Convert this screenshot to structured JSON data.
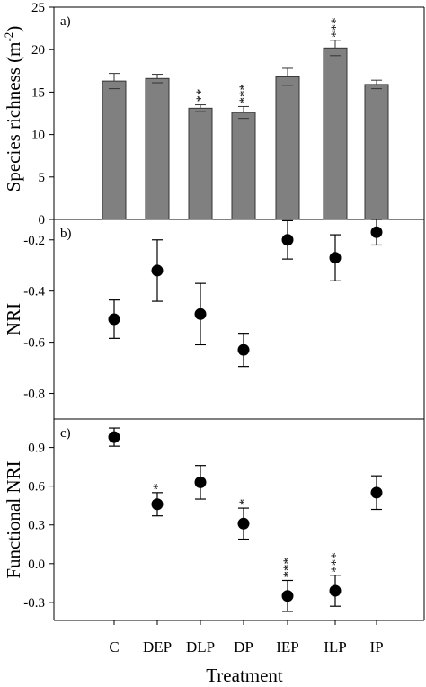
{
  "x_axis": {
    "label": "Treatment",
    "categories": [
      "C",
      "DEP",
      "DLP",
      "DP",
      "IEP",
      "ILP",
      "IP"
    ]
  },
  "chart_data": [
    {
      "type": "bar",
      "panel_label": "a)",
      "ylabel": "Species richness (m",
      "ylabel_sup": "-2",
      "ylabel_close": ")",
      "categories": [
        "C",
        "DEP",
        "DLP",
        "DP",
        "IEP",
        "ILP",
        "IP"
      ],
      "values": [
        16.3,
        16.6,
        13.1,
        12.6,
        16.8,
        20.2,
        15.9
      ],
      "errors": [
        0.9,
        0.5,
        0.4,
        0.7,
        1.0,
        0.9,
        0.5
      ],
      "annotations": [
        "",
        "",
        "**",
        "***",
        "",
        "***",
        ""
      ],
      "ylim": [
        0,
        25
      ],
      "yticks": [
        0,
        5,
        10,
        15,
        20,
        25
      ],
      "ytick_labels": [
        "0",
        "5",
        "10",
        "15",
        "20",
        "25"
      ],
      "bar_color": "#808080",
      "grid": false
    },
    {
      "type": "scatter",
      "panel_label": "b)",
      "ylabel": "NRI",
      "categories": [
        "C",
        "DEP",
        "DLP",
        "DP",
        "IEP",
        "ILP",
        "IP"
      ],
      "values": [
        -0.51,
        -0.32,
        -0.49,
        -0.63,
        -0.2,
        -0.27,
        -0.17
      ],
      "errors": [
        0.075,
        0.12,
        0.12,
        0.065,
        0.075,
        0.09,
        0.05
      ],
      "annotations": [
        "",
        "",
        "",
        "",
        "",
        "",
        ""
      ],
      "ylim": [
        -0.9,
        -0.12
      ],
      "yticks": [
        -0.8,
        -0.6,
        -0.4,
        -0.2
      ],
      "ytick_labels": [
        "-0.8",
        "-0.6",
        "-0.4",
        "-0.2"
      ],
      "marker_color": "#000000",
      "grid": false
    },
    {
      "type": "scatter",
      "panel_label": "c)",
      "ylabel": "Functional NRI",
      "categories": [
        "C",
        "DEP",
        "DLP",
        "DP",
        "IEP",
        "ILP",
        "IP"
      ],
      "values": [
        0.98,
        0.46,
        0.63,
        0.31,
        -0.25,
        -0.21,
        0.55
      ],
      "errors": [
        0.07,
        0.09,
        0.13,
        0.12,
        0.12,
        0.12,
        0.13
      ],
      "annotations": [
        "",
        "*",
        "",
        "*",
        "***",
        "***",
        ""
      ],
      "ylim": [
        -0.44,
        1.12
      ],
      "yticks": [
        -0.3,
        0.0,
        0.3,
        0.6,
        0.9
      ],
      "ytick_labels": [
        "-0.3",
        "0.0",
        "0.3",
        "0.6",
        "0.9"
      ],
      "marker_color": "#000000",
      "grid": false
    }
  ]
}
